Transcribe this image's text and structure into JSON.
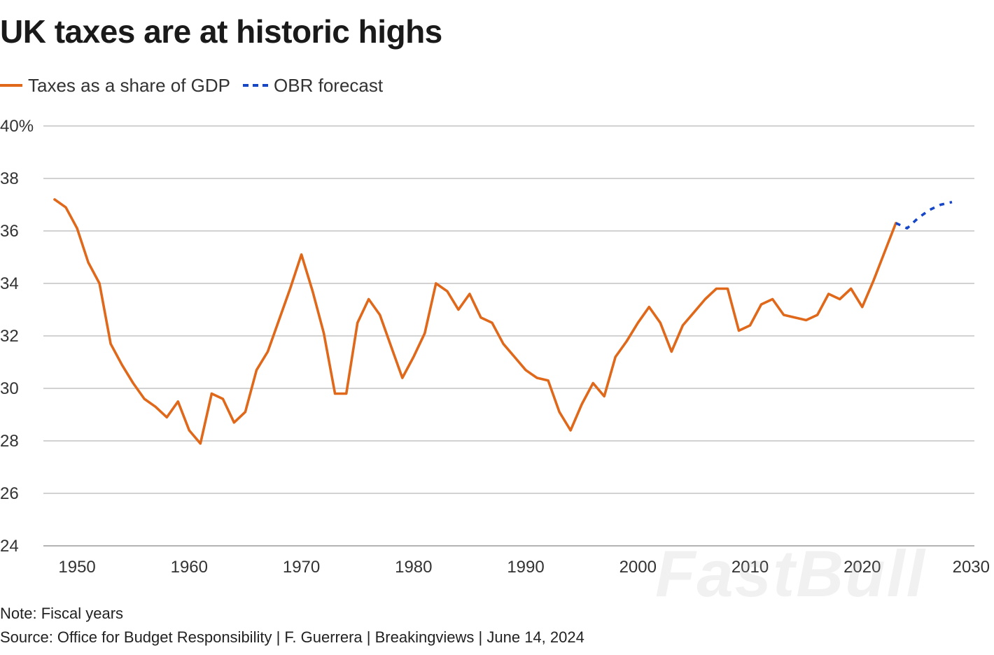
{
  "title": "UK taxes are at historic highs",
  "legend": [
    {
      "label": "Taxes as a share of GDP",
      "style": "solid",
      "color": "#e0681a"
    },
    {
      "label": "OBR forecast",
      "style": "dashed",
      "color": "#1747c9"
    }
  ],
  "note": "Note: Fiscal years",
  "source": "Source: Office for Budget Responsibility | F. Guerrera | Breakingviews | June 14, 2024",
  "watermark": "FastBull",
  "chart_data": {
    "type": "line",
    "title": "UK taxes are at historic highs",
    "xlabel": "",
    "ylabel": "",
    "xlim": [
      1947,
      2030
    ],
    "ylim": [
      24,
      40
    ],
    "grid": true,
    "legend_position": "top-left",
    "x_ticks": [
      1950,
      1960,
      1970,
      1980,
      1990,
      2000,
      2010,
      2020,
      2030
    ],
    "y_ticks": [
      24,
      26,
      28,
      30,
      32,
      34,
      36,
      38,
      40
    ],
    "y_tick_labels": [
      "24",
      "26",
      "28",
      "30",
      "32",
      "34",
      "36",
      "38",
      "40%"
    ],
    "series": [
      {
        "name": "Taxes as a share of GDP",
        "color": "#e0681a",
        "style": "solid",
        "x": [
          1948,
          1949,
          1950,
          1951,
          1952,
          1953,
          1954,
          1955,
          1956,
          1957,
          1958,
          1959,
          1960,
          1961,
          1962,
          1963,
          1964,
          1965,
          1966,
          1967,
          1968,
          1969,
          1970,
          1971,
          1972,
          1973,
          1974,
          1975,
          1976,
          1977,
          1978,
          1979,
          1980,
          1981,
          1982,
          1983,
          1984,
          1985,
          1986,
          1987,
          1988,
          1989,
          1990,
          1991,
          1992,
          1993,
          1994,
          1995,
          1996,
          1997,
          1998,
          1999,
          2000,
          2001,
          2002,
          2003,
          2004,
          2005,
          2006,
          2007,
          2008,
          2009,
          2010,
          2011,
          2012,
          2013,
          2014,
          2015,
          2016,
          2017,
          2018,
          2019,
          2020,
          2021,
          2022,
          2023
        ],
        "y": [
          37.2,
          36.9,
          36.1,
          34.8,
          34.0,
          31.7,
          30.9,
          30.2,
          29.6,
          29.3,
          28.9,
          29.5,
          28.4,
          27.9,
          29.8,
          29.6,
          28.7,
          29.1,
          30.7,
          31.4,
          32.6,
          33.8,
          35.1,
          33.7,
          32.1,
          29.8,
          29.8,
          32.5,
          33.4,
          32.8,
          31.6,
          30.4,
          31.2,
          32.1,
          34.0,
          33.7,
          33.0,
          33.6,
          32.7,
          32.5,
          31.7,
          31.2,
          30.7,
          30.4,
          30.3,
          29.1,
          28.4,
          29.4,
          30.2,
          29.7,
          31.2,
          31.8,
          32.5,
          33.1,
          32.5,
          31.4,
          32.4,
          32.9,
          33.4,
          33.8,
          33.8,
          32.2,
          32.4,
          33.2,
          33.4,
          32.8,
          32.7,
          32.6,
          32.8,
          33.6,
          33.4,
          33.8,
          33.1,
          34.1,
          35.2,
          36.3
        ]
      },
      {
        "name": "OBR forecast",
        "color": "#1747c9",
        "style": "dashed",
        "x": [
          2023,
          2024,
          2025,
          2026,
          2027,
          2028
        ],
        "y": [
          36.3,
          36.1,
          36.5,
          36.8,
          37.0,
          37.1
        ]
      }
    ]
  }
}
